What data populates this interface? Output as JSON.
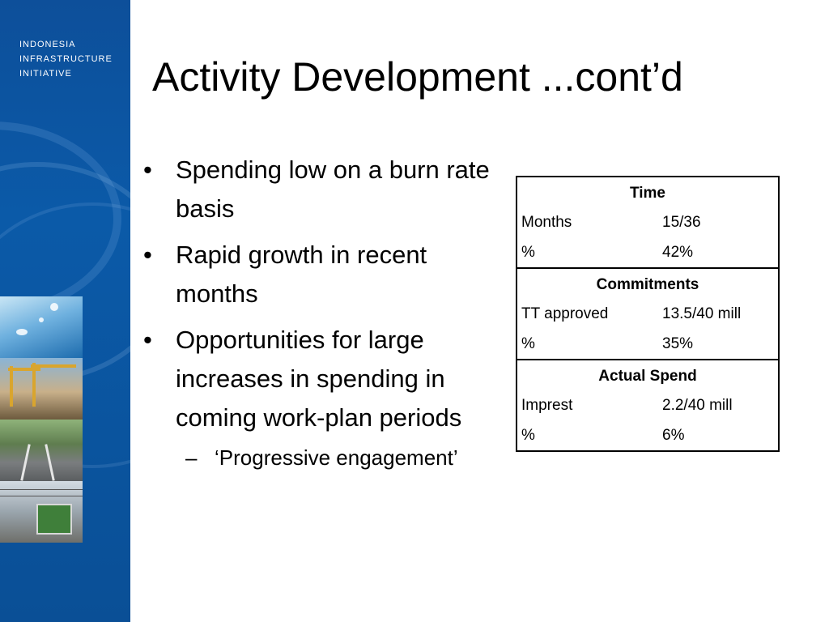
{
  "slide": {
    "title": "Activity Development ...cont’d"
  },
  "sidebar": {
    "logo_lines": [
      "INDONESIA",
      "INFRASTRUCTURE",
      "INITIATIVE"
    ]
  },
  "bullets": [
    {
      "marker": "•",
      "text": "Spending low on a burn rate basis"
    },
    {
      "marker": "•",
      "text": "Rapid growth in recent months"
    },
    {
      "marker": "•",
      "text": "Opportunities for large increases in spending in coming work-plan periods"
    }
  ],
  "sub_bullet": {
    "marker": "–",
    "text": "‘Progressive engagement’"
  },
  "table": {
    "sections": [
      {
        "header": "Time",
        "rows": [
          {
            "label": "Months",
            "value": "15/36"
          },
          {
            "label": "%",
            "value": "42%"
          }
        ]
      },
      {
        "header": "Commitments",
        "rows": [
          {
            "label": "TT approved",
            "value": "13.5/40 mill"
          },
          {
            "label": "%",
            "value": "35%"
          }
        ]
      },
      {
        "header": "Actual Spend",
        "rows": [
          {
            "label": "Imprest",
            "value": "2.2/40 mill"
          },
          {
            "label": "%",
            "value": "6%"
          }
        ]
      }
    ]
  },
  "colors": {
    "sidebar_blue": "#0b5aa8",
    "text": "#000000",
    "background": "#ffffff"
  }
}
